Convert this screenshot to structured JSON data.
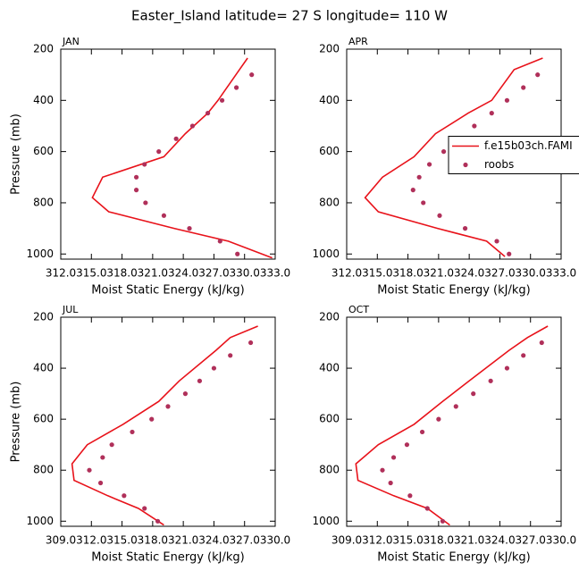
{
  "title": "Easter_Island  latitude= 27 S longitude= 110 W",
  "chart_data": [
    {
      "type": "line",
      "subtitle": "JAN",
      "xlabel": "Moist Static Energy (kJ/kg)",
      "ylabel": "Pressure (mb)",
      "xlim": [
        312,
        333
      ],
      "xticks": [
        {
          "value": 312,
          "label": "312.0"
        },
        {
          "value": 315,
          "label": "315.0"
        },
        {
          "value": 318,
          "label": "318.0"
        },
        {
          "value": 321,
          "label": "321.0"
        },
        {
          "value": 324,
          "label": "324.0"
        },
        {
          "value": 327,
          "label": "327.0"
        },
        {
          "value": 330,
          "label": "330.0"
        },
        {
          "value": 333,
          "label": "333.0"
        }
      ],
      "ylim": [
        1020,
        200
      ],
      "yticks": [
        200,
        400,
        600,
        800,
        1000
      ],
      "series": [
        {
          "mode": "line",
          "color": "#e8121a",
          "x": [
            330.3,
            329.5,
            327.4,
            326.4,
            324.2,
            322.1,
            316.1,
            315.1,
            316.7,
            323.1,
            328.4,
            332.7
          ],
          "values": [
            235,
            280,
            400,
            450,
            530,
            620,
            700,
            780,
            835,
            900,
            950,
            1015
          ]
        },
        {
          "mode": "markers",
          "color": "#b0305a",
          "x": [
            330.7,
            329.2,
            327.8,
            326.4,
            324.9,
            323.3,
            321.6,
            320.2,
            319.4,
            319.4,
            320.3,
            322.1,
            324.6,
            327.6,
            329.3
          ],
          "values": [
            300,
            350,
            400,
            450,
            500,
            550,
            600,
            650,
            700,
            750,
            800,
            850,
            900,
            950,
            1000
          ]
        }
      ]
    },
    {
      "type": "line",
      "subtitle": "APR",
      "xlabel": "Moist Static Energy (kJ/kg)",
      "legend": "right",
      "xlim": [
        312,
        333
      ],
      "xticks": [
        {
          "value": 312,
          "label": "312.0"
        },
        {
          "value": 315,
          "label": "315.0"
        },
        {
          "value": 318,
          "label": "318.0"
        },
        {
          "value": 321,
          "label": "321.0"
        },
        {
          "value": 324,
          "label": "324.0"
        },
        {
          "value": 327,
          "label": "327.0"
        },
        {
          "value": 330,
          "label": "330.0"
        },
        {
          "value": 333,
          "label": "333.0"
        }
      ],
      "ylim": [
        1020,
        200
      ],
      "yticks": [
        200,
        400,
        600,
        800,
        1000
      ],
      "series": [
        {
          "name": "f.e15b03ch.FAMI",
          "mode": "line",
          "color": "#e8121a",
          "x": [
            331.2,
            328.4,
            326.2,
            323.9,
            320.7,
            318.6,
            315.5,
            313.8,
            315.1,
            320.9,
            325.7,
            327.5
          ],
          "values": [
            235,
            280,
            400,
            450,
            530,
            620,
            700,
            780,
            835,
            900,
            950,
            1010
          ]
        },
        {
          "name": "roobs",
          "mode": "markers",
          "color": "#b0305a",
          "x": [
            330.7,
            329.3,
            327.7,
            326.2,
            324.5,
            322.9,
            321.5,
            320.1,
            319.1,
            318.5,
            319.5,
            321.1,
            323.6,
            326.7,
            327.9
          ],
          "values": [
            300,
            350,
            400,
            450,
            500,
            550,
            600,
            650,
            700,
            750,
            800,
            850,
            900,
            950,
            1000
          ]
        }
      ]
    },
    {
      "type": "line",
      "subtitle": "JUL",
      "xlabel": "Moist Static Energy (kJ/kg)",
      "ylabel": "Pressure (mb)",
      "xlim": [
        309,
        330
      ],
      "xticks": [
        {
          "value": 309,
          "label": "309.0"
        },
        {
          "value": 312,
          "label": "312.0"
        },
        {
          "value": 315,
          "label": "315.0"
        },
        {
          "value": 318,
          "label": "318.0"
        },
        {
          "value": 321,
          "label": "321.0"
        },
        {
          "value": 324,
          "label": "324.0"
        },
        {
          "value": 327,
          "label": "327.0"
        },
        {
          "value": 330,
          "label": "330.0"
        }
      ],
      "ylim": [
        1020,
        200
      ],
      "yticks": [
        200,
        400,
        600,
        800,
        1000
      ],
      "series": [
        {
          "mode": "line",
          "color": "#e8121a",
          "x": [
            328.3,
            325.6,
            324.2,
            320.6,
            318.6,
            315.1,
            311.6,
            310.1,
            310.3,
            313.6,
            316.6,
            319.1
          ],
          "values": [
            235,
            280,
            330,
            450,
            530,
            620,
            700,
            775,
            840,
            900,
            950,
            1015
          ]
        },
        {
          "mode": "markers",
          "color": "#b0305a",
          "x": [
            327.6,
            325.6,
            324.0,
            322.6,
            321.2,
            319.5,
            317.9,
            316.0,
            314.0,
            313.1,
            311.8,
            312.9,
            315.2,
            317.2,
            318.5
          ],
          "values": [
            300,
            350,
            400,
            450,
            500,
            550,
            600,
            650,
            700,
            750,
            800,
            850,
            900,
            950,
            1000
          ]
        }
      ]
    },
    {
      "type": "line",
      "subtitle": "OCT",
      "xlabel": "Moist Static Energy (kJ/kg)",
      "xlim": [
        309,
        330
      ],
      "xticks": [
        {
          "value": 309,
          "label": "309.0"
        },
        {
          "value": 312,
          "label": "312.0"
        },
        {
          "value": 315,
          "label": "315.0"
        },
        {
          "value": 318,
          "label": "318.0"
        },
        {
          "value": 321,
          "label": "321.0"
        },
        {
          "value": 324,
          "label": "324.0"
        },
        {
          "value": 327,
          "label": "327.0"
        },
        {
          "value": 330,
          "label": "330.0"
        }
      ],
      "ylim": [
        1020,
        200
      ],
      "yticks": [
        200,
        400,
        600,
        800,
        1000
      ],
      "series": [
        {
          "mode": "line",
          "color": "#e8121a",
          "x": [
            328.7,
            326.7,
            324.9,
            321.0,
            318.4,
            315.6,
            312.1,
            309.9,
            310.1,
            313.6,
            316.9,
            319.1
          ],
          "values": [
            235,
            280,
            330,
            450,
            530,
            620,
            700,
            775,
            840,
            900,
            950,
            1015
          ]
        },
        {
          "mode": "markers",
          "color": "#b0305a",
          "x": [
            328.1,
            326.3,
            324.7,
            323.1,
            321.4,
            319.7,
            318.0,
            316.4,
            314.9,
            313.6,
            312.5,
            313.3,
            315.2,
            316.9,
            318.4
          ],
          "values": [
            300,
            350,
            400,
            450,
            500,
            550,
            600,
            650,
            700,
            750,
            800,
            850,
            900,
            950,
            1000
          ]
        }
      ]
    }
  ]
}
